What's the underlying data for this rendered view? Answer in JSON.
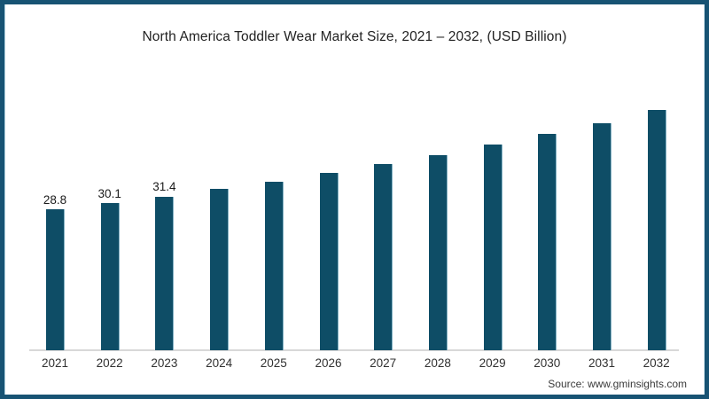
{
  "frame": {
    "border_color": "#175373",
    "background_color": "#ffffff"
  },
  "title": "North America Toddler Wear Market Size, 2021 – 2032, (USD Billion)",
  "source": "Source: www.gminsights.com",
  "chart_data": {
    "type": "bar",
    "title": "North America Toddler Wear Market Size, 2021 – 2032, (USD Billion)",
    "unit": "USD Billion",
    "categories": [
      "2021",
      "2022",
      "2023",
      "2024",
      "2025",
      "2026",
      "2027",
      "2028",
      "2029",
      "2030",
      "2031",
      "2032"
    ],
    "values": [
      28.8,
      30.1,
      31.4,
      32.9,
      34.4,
      36.2,
      38.0,
      39.9,
      42.0,
      44.1,
      46.3,
      49.0
    ],
    "data_labels": [
      "28.8",
      "30.1",
      "31.4",
      null,
      null,
      null,
      null,
      null,
      null,
      null,
      null,
      null
    ],
    "bar_color": "#0e4d66",
    "axis_line_color": "#d8d8d8",
    "ylim": [
      0,
      52
    ],
    "grid": false,
    "legend": false,
    "xlabel": "",
    "ylabel": ""
  }
}
